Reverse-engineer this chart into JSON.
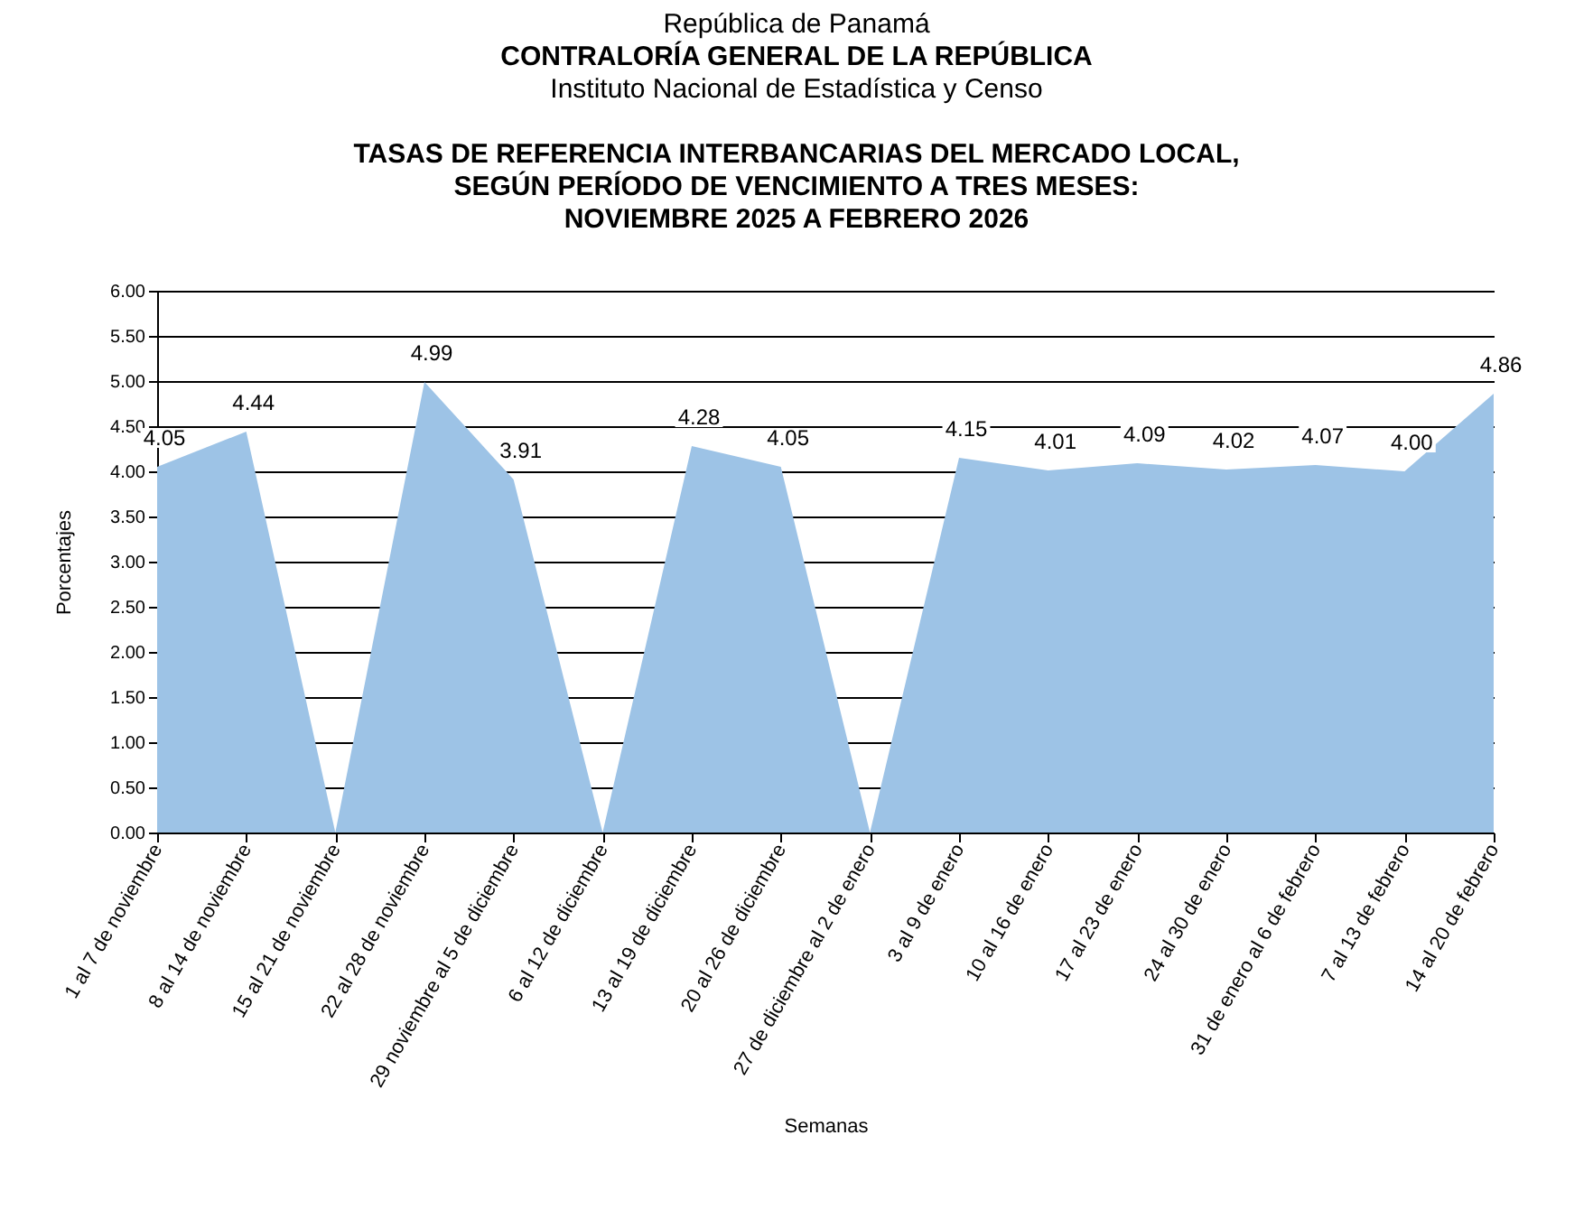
{
  "chart_data": {
    "type": "area",
    "annotations": [
      "República de Panamá",
      "CONTRALORÍA GENERAL DE LA REPÚBLICA",
      "Instituto Nacional de Estadística y Censo"
    ],
    "title": "TASAS DE REFERENCIA INTERBANCARIAS DEL MERCADO LOCAL,\nSEGÚN PERÍODO DE VENCIMIENTO A TRES MESES:\nNOVIEMBRE 2025 A FEBRERO 2026",
    "xlabel": "Semanas",
    "ylabel": "Porcentajes",
    "categories": [
      "1 al 7 de noviembre",
      "8 al 14 de noviembre",
      "15 al 21 de noviembre",
      "22 al 28 de noviembre",
      "29 noviembre al 5 de diciembre",
      "6 al 12 de diciembre",
      "13 al 19 de diciembre",
      "20 al 26 de diciembre",
      "27 de diciembre al 2 de enero",
      "3 al 9 de enero",
      "10 al 16 de enero",
      "17 al 23 de enero",
      "24 al 30 de enero",
      "31 de enero al 6 de febrero",
      "7 al 13 de febrero",
      "14 al 20 de febrero"
    ],
    "series": [
      {
        "color": "#9dc3e6",
        "values": [
          4.05,
          4.44,
          0,
          4.99,
          3.91,
          0,
          4.28,
          4.05,
          0,
          4.15,
          4.01,
          4.09,
          4.02,
          4.07,
          4.0,
          4.86
        ],
        "value_labels": [
          "4.05",
          "4.44",
          null,
          "4.99",
          "3.91",
          null,
          "4.28",
          "4.05",
          null,
          "4.15",
          "4.01",
          "4.09",
          "4.02",
          "4.07",
          "4.00",
          "4.86"
        ]
      }
    ],
    "ylim": [
      0,
      6
    ],
    "yticks": [
      {
        "value": 0,
        "label": "0.00"
      },
      {
        "value": 0.5,
        "label": "0.50"
      },
      {
        "value": 1,
        "label": "1.00"
      },
      {
        "value": 1.5,
        "label": "1.50"
      },
      {
        "value": 2,
        "label": "2.00"
      },
      {
        "value": 2.5,
        "label": "2.50"
      },
      {
        "value": 3,
        "label": "3.00"
      },
      {
        "value": 3.5,
        "label": "3.50"
      },
      {
        "value": 4,
        "label": "4.00"
      },
      {
        "value": 4.5,
        "label": "4.50"
      },
      {
        "value": 5,
        "label": "5.00"
      },
      {
        "value": 5.5,
        "label": "5.50"
      },
      {
        "value": 6,
        "label": "6.00"
      }
    ],
    "grid": "y",
    "legend": false
  }
}
